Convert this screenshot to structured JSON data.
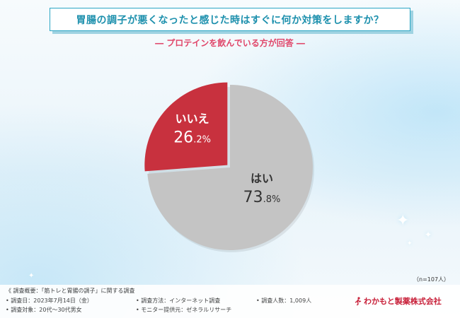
{
  "title": "胃腸の調子が悪くなったと感じた時はすぐに何か対策をしますか？",
  "subtitle": "― プロテインを飲んでいる方が回答 ―",
  "n_label": "（n=107人）",
  "colors": {
    "yes": "#c4c4c4",
    "no": "#c8313e",
    "accent": "#2ba6c4"
  },
  "chart_data": {
    "type": "pie",
    "title": "胃腸の調子が悪くなったと感じた時はすぐに何か対策をしますか？",
    "subtitle": "― プロテインを飲んでいる方が回答 ―",
    "slices": [
      {
        "label": "はい",
        "value": 73.8,
        "int": "73",
        "dec": ".8%",
        "color": "#c4c4c4"
      },
      {
        "label": "いいえ",
        "value": 26.2,
        "int": "26",
        "dec": ".2%",
        "color": "#c8313e"
      }
    ]
  },
  "footer": {
    "summary": "《 調査概要：「筋トレと胃腸の調子」に関する調査",
    "date": "• 調査日：2023年7月14日（金）",
    "target": "• 調査対象：20代〜30代男女",
    "method": "• 調査方法：インターネット調査",
    "provider": "• モニター提供元：ゼネラルリサーチ",
    "count": "• 調査人数：1,009人"
  },
  "logo_text": "わかもと製薬株式会社",
  "logo_icon": "runner-figure-icon"
}
